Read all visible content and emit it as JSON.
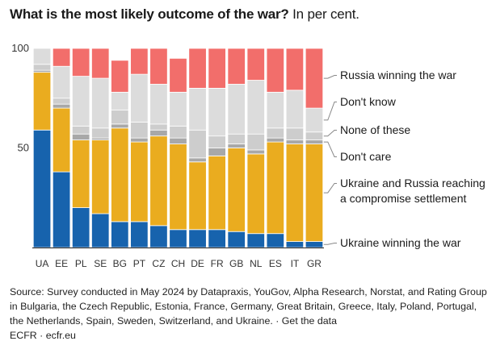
{
  "chart_data": {
    "type": "bar",
    "stacked": true,
    "title_bold": "What is the most likely outcome of the war?",
    "title_light": " In per cent.",
    "categories": [
      "UA",
      "EE",
      "PL",
      "SE",
      "BG",
      "PT",
      "CZ",
      "CH",
      "DE",
      "FR",
      "GB",
      "NL",
      "ES",
      "IT",
      "GR"
    ],
    "ylim": [
      0,
      100
    ],
    "yticks": [
      {
        "value": 100,
        "label": "100"
      },
      {
        "value": 50,
        "label": "50"
      }
    ],
    "series": [
      {
        "name": "Ukraine winning the war",
        "color": "#1763ad",
        "values": [
          59,
          38,
          20,
          17,
          13,
          13,
          11,
          9,
          9,
          9,
          8,
          7,
          7,
          3,
          3
        ]
      },
      {
        "name": "Ukraine and Russia reaching a compromise settlement",
        "color": "#eaac1f",
        "values": [
          29,
          32,
          34,
          37,
          47,
          40,
          45,
          43,
          34,
          37,
          42,
          40,
          46,
          49,
          49
        ]
      },
      {
        "name": "Don't care",
        "color": "#a8a8a8",
        "values": [
          1,
          2,
          3,
          1,
          2,
          2,
          3,
          3,
          2,
          4,
          2,
          2,
          2,
          2,
          2
        ]
      },
      {
        "name": "None of these",
        "color": "#cdcdcd",
        "values": [
          3,
          3,
          4,
          5,
          7,
          8,
          3,
          6,
          14,
          6,
          5,
          8,
          5,
          6,
          4
        ]
      },
      {
        "name": "Don't know",
        "color": "#dcdcdc",
        "values": [
          8,
          16,
          25,
          25,
          9,
          24,
          20,
          17,
          21,
          24,
          25,
          27,
          18,
          19,
          12
        ]
      },
      {
        "name": "Russia winning the war",
        "color": "#f26e6b",
        "values": [
          0,
          9,
          14,
          15,
          16,
          13,
          18,
          17,
          20,
          20,
          18,
          16,
          22,
          21,
          30
        ]
      }
    ],
    "legend": [
      {
        "lines": [
          "Russia winning the war"
        ],
        "series": 5
      },
      {
        "lines": [
          "Don't know"
        ],
        "series": 4
      },
      {
        "lines": [
          "None of these"
        ],
        "series": 3
      },
      {
        "lines": [
          "Don't care"
        ],
        "series": 2
      },
      {
        "lines": [
          "Ukraine and Russia reaching",
          "a compromise settlement"
        ],
        "series": 1
      },
      {
        "lines": [
          "Ukraine winning the war"
        ],
        "series": 0
      }
    ]
  },
  "footer": {
    "source": "Source: Survey conducted in May 2024 by Datapraxis, YouGov, Alpha Research, Norstat, and Rating Group in Bulgaria, the Czech Republic, Estonia, France, Germany, Great Britain, Greece, Italy, Poland, Portugal, the Netherlands, Spain, Sweden, Switzerland, and Ukraine. · Get the data",
    "credit": "ECFR · ecfr.eu"
  }
}
